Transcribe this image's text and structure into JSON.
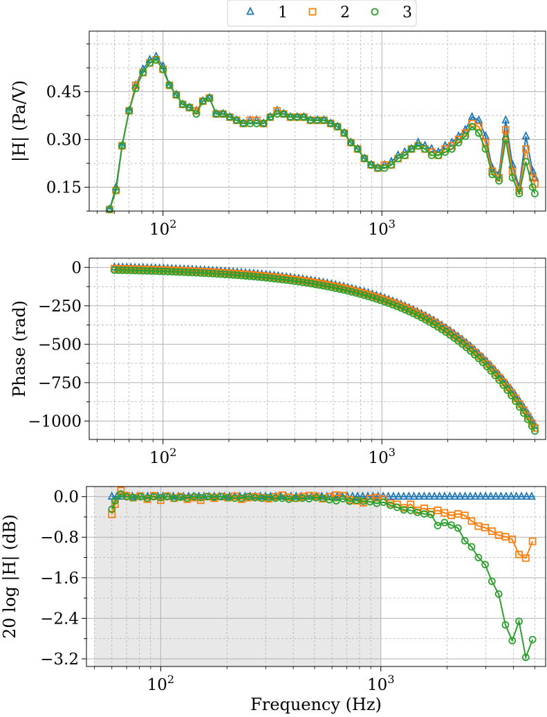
{
  "legend": {
    "entries": [
      {
        "name": "1",
        "color": "#1f77b4",
        "marker": "triangle"
      },
      {
        "name": "2",
        "color": "#ff7f0e",
        "marker": "square"
      },
      {
        "name": "3",
        "color": "#2ca02c",
        "marker": "circle"
      }
    ],
    "placement": "top-center"
  },
  "chart_data": [
    {
      "type": "line",
      "title": "",
      "xlabel": "",
      "ylabel": "|H| (Pa/V)",
      "xscale": "log",
      "xlim": [
        46,
        5600
      ],
      "ylim": [
        0.075,
        0.64
      ],
      "yticks": [
        0.15,
        0.3,
        0.45
      ],
      "ytick_labels": [
        "0.15",
        "0.30",
        "0.45"
      ],
      "xtick_labels": [
        "10^2",
        "10^3"
      ],
      "grid": true,
      "series": [
        {
          "name": "1",
          "x": [
            57,
            61,
            65,
            70,
            75,
            81,
            87,
            93,
            100,
            107,
            115,
            123,
            132,
            142,
            152,
            163,
            175,
            188,
            202,
            217,
            233,
            250,
            268,
            288,
            309,
            332,
            356,
            382,
            410,
            440,
            472,
            507,
            544,
            584,
            627,
            673,
            722,
            775,
            832,
            893,
            958,
            1028,
            1104,
            1185,
            1272,
            1365,
            1465,
            1573,
            1688,
            1812,
            1945,
            2088,
            2241,
            2406,
            2582,
            2772,
            2975,
            3193,
            3428,
            3679,
            3950,
            4240,
            4551,
            4885,
            5000
          ],
          "y": [
            0.08,
            0.15,
            0.28,
            0.39,
            0.47,
            0.52,
            0.55,
            0.56,
            0.53,
            0.47,
            0.44,
            0.41,
            0.4,
            0.39,
            0.42,
            0.43,
            0.38,
            0.38,
            0.37,
            0.36,
            0.35,
            0.36,
            0.36,
            0.35,
            0.37,
            0.39,
            0.38,
            0.37,
            0.37,
            0.37,
            0.36,
            0.36,
            0.36,
            0.35,
            0.34,
            0.32,
            0.29,
            0.27,
            0.24,
            0.22,
            0.21,
            0.22,
            0.23,
            0.25,
            0.26,
            0.27,
            0.29,
            0.28,
            0.27,
            0.26,
            0.28,
            0.29,
            0.31,
            0.33,
            0.37,
            0.36,
            0.31,
            0.21,
            0.19,
            0.36,
            0.22,
            0.15,
            0.31,
            0.2,
            0.18
          ]
        },
        {
          "name": "2",
          "x": [
            57,
            61,
            65,
            70,
            75,
            81,
            87,
            93,
            100,
            107,
            115,
            123,
            132,
            142,
            152,
            163,
            175,
            188,
            202,
            217,
            233,
            250,
            268,
            288,
            309,
            332,
            356,
            382,
            410,
            440,
            472,
            507,
            544,
            584,
            627,
            673,
            722,
            775,
            832,
            893,
            958,
            1028,
            1104,
            1185,
            1272,
            1365,
            1465,
            1573,
            1688,
            1812,
            1945,
            2088,
            2241,
            2406,
            2582,
            2772,
            2975,
            3193,
            3428,
            3679,
            3950,
            4240,
            4551,
            4885,
            5000
          ],
          "y": [
            0.08,
            0.14,
            0.28,
            0.39,
            0.47,
            0.51,
            0.54,
            0.55,
            0.52,
            0.47,
            0.44,
            0.41,
            0.4,
            0.39,
            0.42,
            0.43,
            0.38,
            0.38,
            0.37,
            0.36,
            0.35,
            0.36,
            0.36,
            0.35,
            0.37,
            0.39,
            0.38,
            0.37,
            0.37,
            0.37,
            0.36,
            0.36,
            0.36,
            0.35,
            0.34,
            0.32,
            0.29,
            0.27,
            0.24,
            0.22,
            0.21,
            0.22,
            0.22,
            0.24,
            0.25,
            0.27,
            0.28,
            0.27,
            0.26,
            0.25,
            0.27,
            0.28,
            0.3,
            0.32,
            0.35,
            0.34,
            0.29,
            0.2,
            0.18,
            0.33,
            0.2,
            0.14,
            0.27,
            0.18,
            0.16
          ]
        },
        {
          "name": "3",
          "x": [
            57,
            61,
            65,
            70,
            75,
            81,
            87,
            93,
            100,
            107,
            115,
            123,
            132,
            142,
            152,
            163,
            175,
            188,
            202,
            217,
            233,
            250,
            268,
            288,
            309,
            332,
            356,
            382,
            410,
            440,
            472,
            507,
            544,
            584,
            627,
            673,
            722,
            775,
            832,
            893,
            958,
            1028,
            1104,
            1185,
            1272,
            1365,
            1465,
            1573,
            1688,
            1812,
            1945,
            2088,
            2241,
            2406,
            2582,
            2772,
            2975,
            3193,
            3428,
            3679,
            3950,
            4240,
            4551,
            4885,
            5000
          ],
          "y": [
            0.08,
            0.14,
            0.28,
            0.39,
            0.46,
            0.51,
            0.54,
            0.55,
            0.52,
            0.47,
            0.44,
            0.41,
            0.4,
            0.38,
            0.42,
            0.43,
            0.38,
            0.38,
            0.37,
            0.36,
            0.35,
            0.35,
            0.35,
            0.35,
            0.37,
            0.38,
            0.38,
            0.37,
            0.37,
            0.37,
            0.36,
            0.36,
            0.36,
            0.35,
            0.34,
            0.32,
            0.29,
            0.27,
            0.24,
            0.22,
            0.21,
            0.21,
            0.22,
            0.24,
            0.25,
            0.27,
            0.28,
            0.27,
            0.25,
            0.25,
            0.26,
            0.27,
            0.29,
            0.31,
            0.34,
            0.32,
            0.27,
            0.19,
            0.17,
            0.3,
            0.18,
            0.13,
            0.23,
            0.15,
            0.13
          ]
        }
      ]
    },
    {
      "type": "line",
      "title": "",
      "xlabel": "",
      "ylabel": "Phase (rad)",
      "xscale": "log",
      "xlim": [
        46,
        5600
      ],
      "ylim": [
        -1120,
        60
      ],
      "yticks": [
        -1000,
        -750,
        -500,
        -250,
        0
      ],
      "ytick_labels": [
        "−1000",
        "−750",
        "−500",
        "−250",
        "0"
      ],
      "xtick_labels": [
        "10^2",
        "10^3"
      ],
      "grid": true,
      "series": [
        {
          "name": "1",
          "phase_slope_per_hz": -0.208,
          "offset": 0
        },
        {
          "name": "2",
          "phase_slope_per_hz": -0.21,
          "offset": -8
        },
        {
          "name": "3",
          "phase_slope_per_hz": -0.212,
          "offset": -18
        }
      ]
    },
    {
      "type": "line",
      "title": "",
      "xlabel": "Frequency (Hz)",
      "ylabel": "20 log |H| (dB)",
      "xscale": "log",
      "xlim": [
        46,
        5600
      ],
      "ylim": [
        -3.35,
        0.2
      ],
      "yticks": [
        -3.2,
        -2.4,
        -1.6,
        -0.8,
        0.0
      ],
      "ytick_labels": [
        "−3.2",
        "−2.4",
        "−1.6",
        "−0.8",
        "0.0"
      ],
      "xtick_labels": [
        "10^2",
        "10^3"
      ],
      "shaded_region": [
        50,
        1000
      ],
      "grid": true,
      "series": [
        {
          "name": "1",
          "x": [
            60,
            5000
          ],
          "y": [
            0.0,
            0.0
          ]
        },
        {
          "name": "2",
          "x": [
            60,
            62,
            66,
            70,
            75,
            81,
            87,
            93,
            100,
            107,
            115,
            123,
            132,
            142,
            152,
            163,
            175,
            188,
            202,
            217,
            233,
            250,
            268,
            288,
            309,
            332,
            356,
            382,
            410,
            440,
            472,
            507,
            544,
            584,
            627,
            673,
            722,
            775,
            832,
            893,
            958,
            1028,
            1104,
            1185,
            1272,
            1365,
            1465,
            1573,
            1688,
            1812,
            1945,
            2088,
            2241,
            2406,
            2582,
            2772,
            2975,
            3193,
            3428,
            3679,
            3950,
            4240,
            4551,
            4885
          ],
          "y": [
            -0.35,
            -0.15,
            0.12,
            0.02,
            -0.02,
            0.01,
            -0.05,
            0.02,
            -0.07,
            0.01,
            -0.03,
            0.0,
            -0.05,
            -0.02,
            -0.07,
            0.0,
            -0.03,
            0.0,
            -0.02,
            0.01,
            -0.05,
            -0.02,
            0.0,
            -0.02,
            -0.04,
            0.0,
            0.03,
            -0.01,
            -0.03,
            0.0,
            0.02,
            0.01,
            -0.04,
            0.0,
            0.03,
            0.02,
            -0.06,
            -0.08,
            -0.12,
            -0.04,
            -0.02,
            -0.05,
            -0.13,
            -0.15,
            -0.22,
            -0.15,
            -0.27,
            -0.23,
            -0.3,
            -0.27,
            -0.32,
            -0.37,
            -0.34,
            -0.37,
            -0.48,
            -0.58,
            -0.61,
            -0.68,
            -0.76,
            -0.79,
            -0.84,
            -1.14,
            -1.21,
            -0.88
          ]
        },
        {
          "name": "3",
          "x": [
            60,
            62,
            66,
            70,
            75,
            81,
            87,
            93,
            100,
            107,
            115,
            123,
            132,
            142,
            152,
            163,
            175,
            188,
            202,
            217,
            233,
            250,
            268,
            288,
            309,
            332,
            356,
            382,
            410,
            440,
            472,
            507,
            544,
            584,
            627,
            673,
            722,
            775,
            832,
            893,
            958,
            1028,
            1104,
            1185,
            1272,
            1365,
            1465,
            1573,
            1688,
            1812,
            1945,
            2088,
            2241,
            2406,
            2582,
            2772,
            2975,
            3193,
            3428,
            3679,
            3950,
            4240,
            4551,
            4885
          ],
          "y": [
            -0.25,
            -0.08,
            0.05,
            0.0,
            -0.02,
            0.0,
            -0.03,
            0.0,
            -0.02,
            0.0,
            -0.03,
            -0.01,
            -0.03,
            0.0,
            -0.02,
            0.0,
            -0.01,
            0.0,
            -0.02,
            -0.03,
            -0.03,
            0.0,
            -0.02,
            -0.03,
            -0.02,
            -0.03,
            -0.03,
            -0.05,
            -0.03,
            -0.03,
            -0.04,
            -0.02,
            -0.03,
            -0.06,
            -0.08,
            -0.04,
            -0.09,
            -0.07,
            -0.09,
            -0.1,
            -0.13,
            -0.11,
            -0.17,
            -0.21,
            -0.26,
            -0.27,
            -0.31,
            -0.34,
            -0.35,
            -0.57,
            -0.51,
            -0.56,
            -0.62,
            -0.87,
            -0.99,
            -1.2,
            -1.34,
            -1.67,
            -1.92,
            -2.53,
            -2.84,
            -2.46,
            -3.17,
            -2.82
          ]
        }
      ]
    }
  ]
}
